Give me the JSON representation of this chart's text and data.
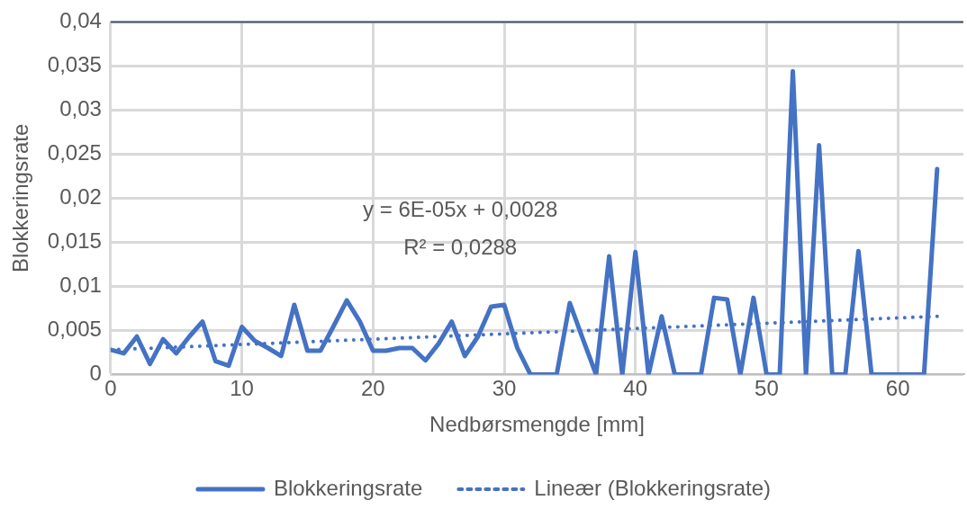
{
  "chart_data": {
    "type": "line",
    "xlabel": "Nedbørsmengde [mm]",
    "ylabel": "Blokkeringsrate",
    "x": [
      0,
      1,
      2,
      3,
      4,
      5,
      6,
      7,
      8,
      9,
      10,
      11,
      12,
      13,
      14,
      15,
      16,
      17,
      18,
      19,
      20,
      21,
      22,
      23,
      24,
      25,
      26,
      27,
      28,
      29,
      30,
      31,
      32,
      33,
      34,
      35,
      36,
      37,
      38,
      39,
      40,
      41,
      42,
      43,
      44,
      45,
      46,
      47,
      48,
      49,
      50,
      51,
      52,
      53,
      54,
      55,
      56,
      57,
      58,
      59,
      60,
      61,
      62,
      63
    ],
    "series": [
      {
        "name": "Blokkeringsrate",
        "color": "#4472c4",
        "line_style": "solid",
        "values": [
          0.0028,
          0.0024,
          0.0043,
          0.0012,
          0.004,
          0.0024,
          0.0043,
          0.006,
          0.0015,
          0.001,
          0.0054,
          0.0038,
          0.003,
          0.0021,
          0.0079,
          0.0027,
          0.0027,
          0.0055,
          0.0084,
          0.006,
          0.0027,
          0.0027,
          0.003,
          0.003,
          0.0016,
          0.0035,
          0.006,
          0.0021,
          0.0043,
          0.0077,
          0.0079,
          0.003,
          0,
          0,
          0,
          0.0081,
          0.004,
          0,
          0.0134,
          0,
          0.0139,
          0,
          0.0066,
          0,
          0,
          0,
          0.0087,
          0.0085,
          0,
          0.0087,
          0,
          0,
          0.0344,
          0,
          0.026,
          0,
          0,
          0.014,
          0,
          0,
          0,
          0,
          0,
          0.0233
        ]
      },
      {
        "name": "Lineær (Blokkeringsrate)",
        "type": "line",
        "color": "#4472c4",
        "line_style": "dotted",
        "x": [
          0,
          63
        ],
        "values": [
          0.0028,
          0.0066
        ]
      }
    ],
    "annotations": [
      "y = 6E-05x + 0,0028",
      "R² = 0,0288"
    ],
    "xlim": [
      0,
      65
    ],
    "xticks": [
      0,
      10,
      20,
      30,
      40,
      50,
      60
    ],
    "ylim": [
      0,
      0.04
    ],
    "yticks": [
      0,
      {
        "value": 0.005,
        "label": "0,005"
      },
      {
        "value": 0.01,
        "label": "0,01"
      },
      {
        "value": 0.015,
        "label": "0,015"
      },
      {
        "value": 0.02,
        "label": "0,02"
      },
      {
        "value": 0.025,
        "label": "0,025"
      },
      {
        "value": 0.03,
        "label": "0,03"
      },
      {
        "value": 0.035,
        "label": "0,035"
      },
      {
        "value": 0.04,
        "label": "0,04"
      }
    ],
    "grid": true,
    "legend": "bottom",
    "marker": "none"
  }
}
